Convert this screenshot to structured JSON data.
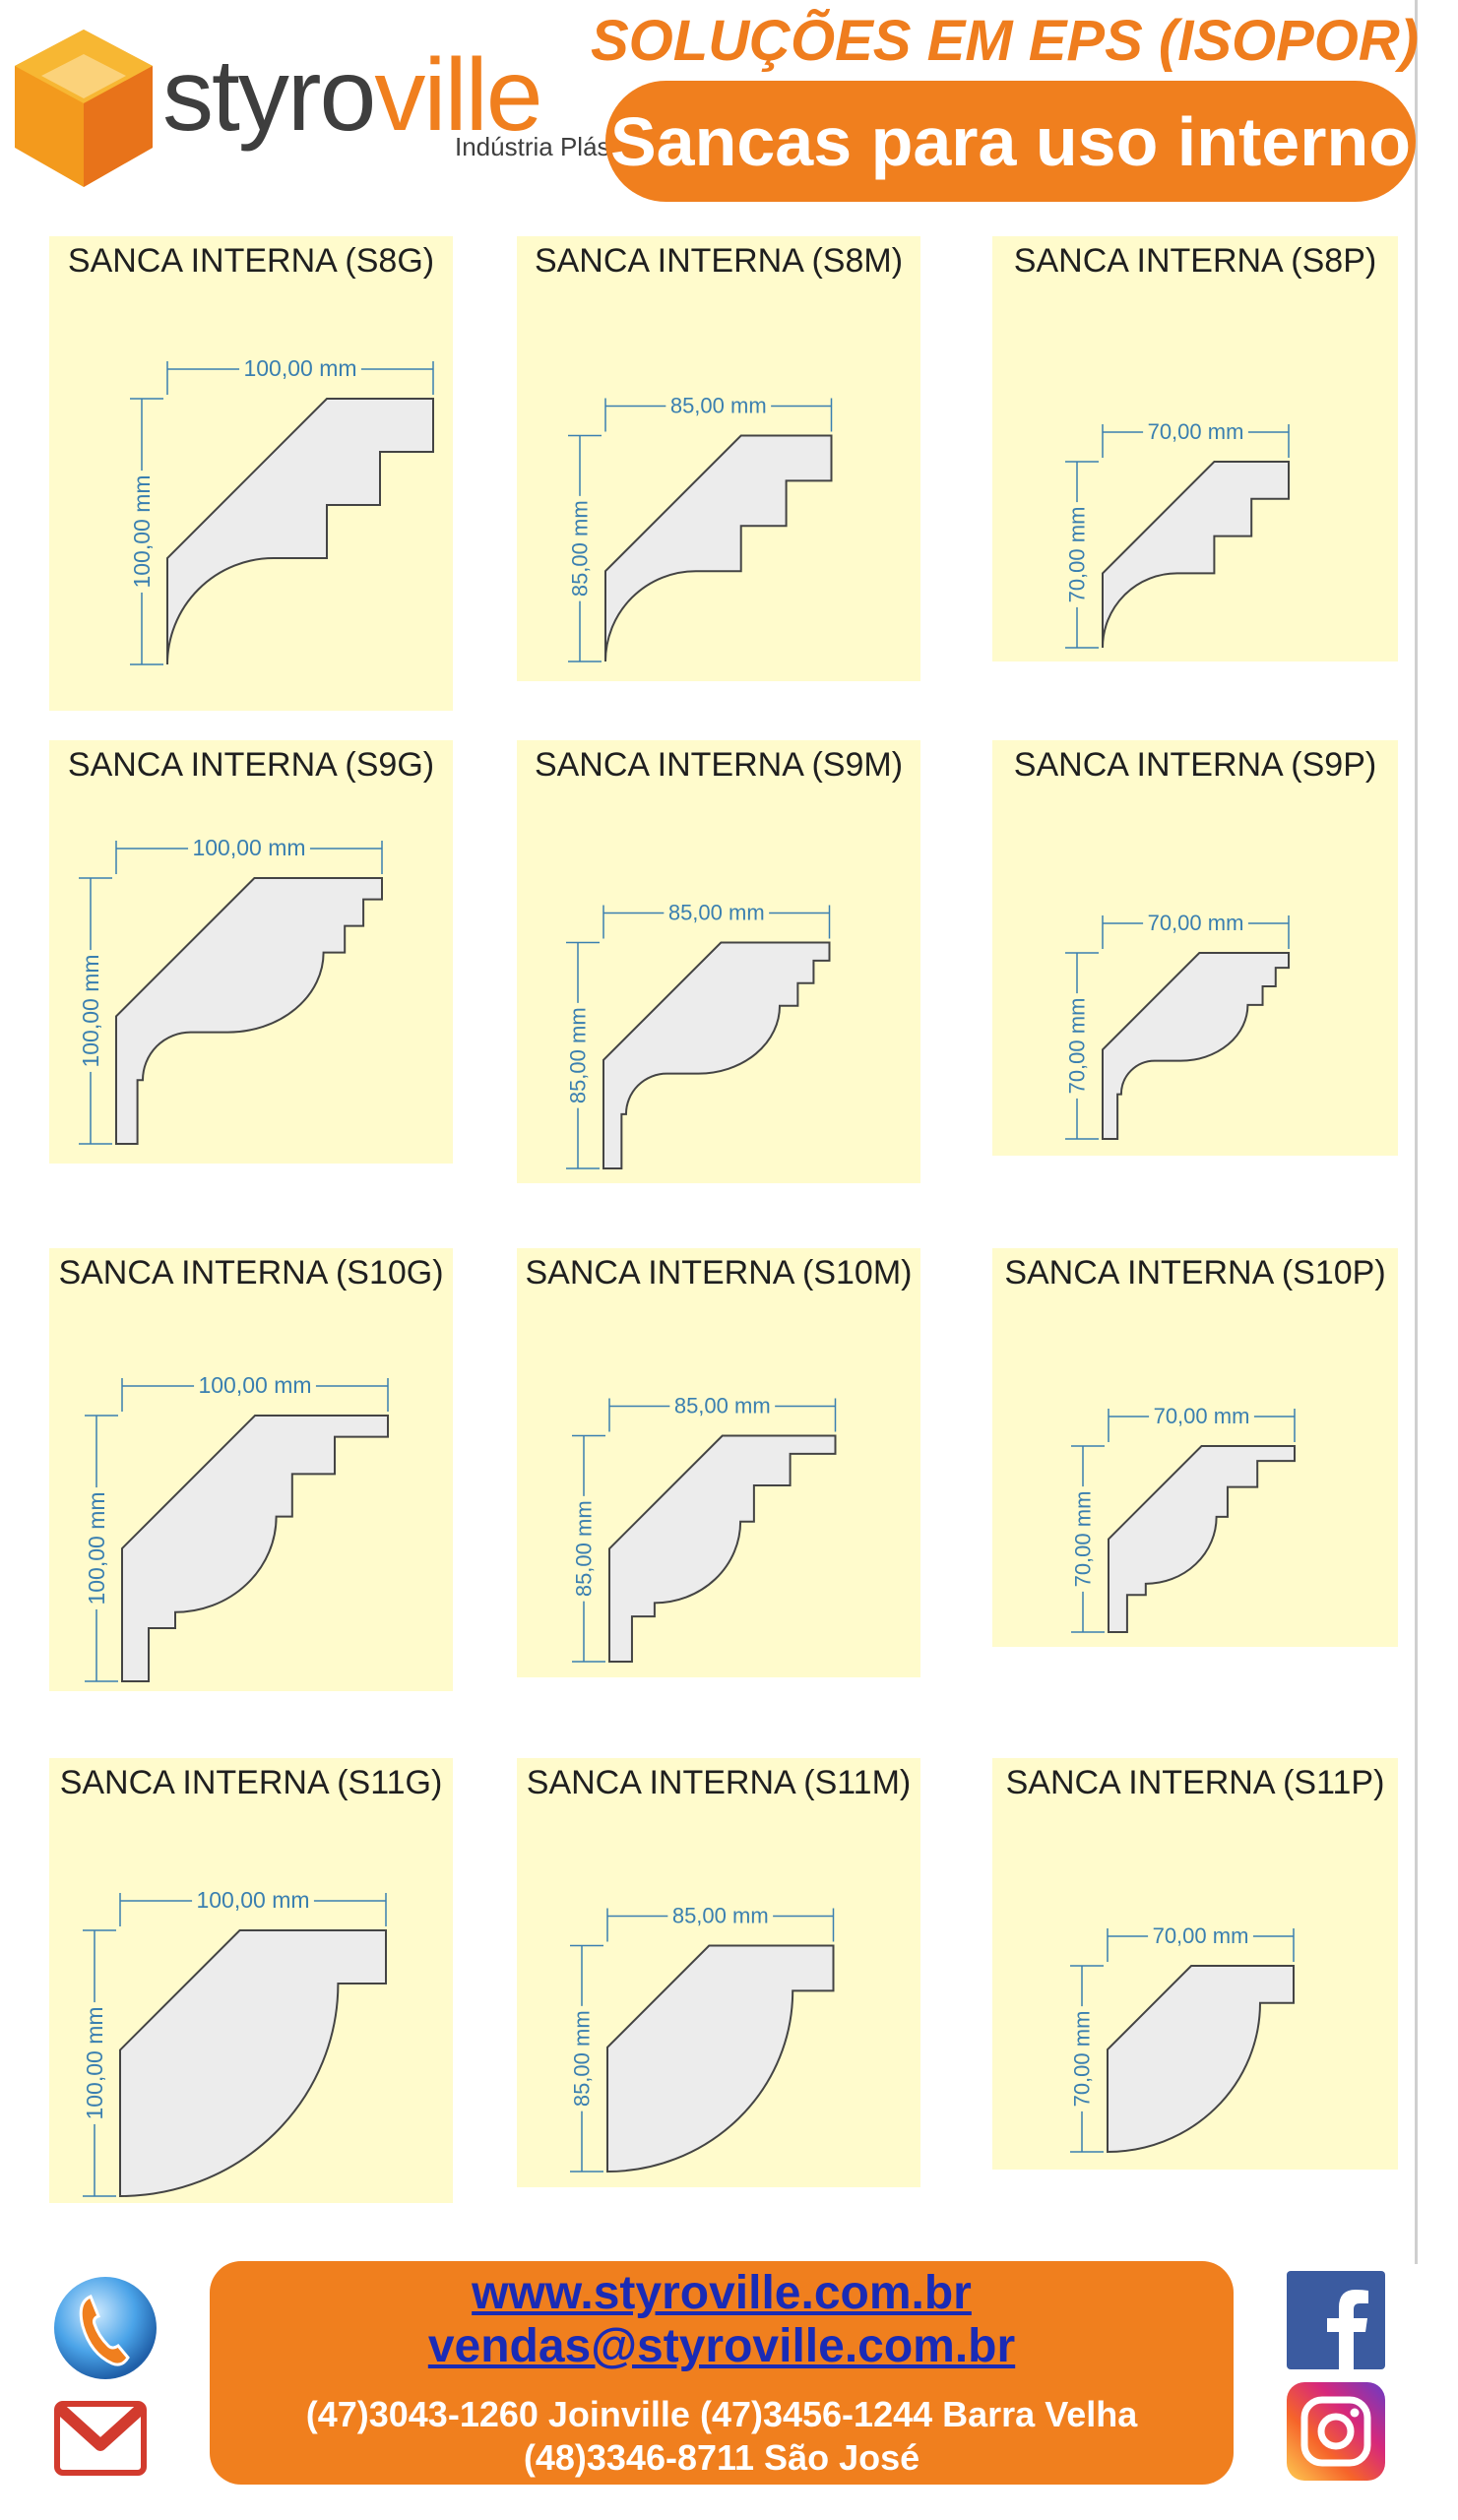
{
  "header": {
    "brand_part1": "styro",
    "brand_part2": "ville",
    "brand_sub": "Indústria Plástica",
    "top_title": "SOLUÇÕES EM EPS (ISOPOR)",
    "pill_title": "Sancas para uso interno"
  },
  "colors": {
    "accent_orange": "#f07f1e",
    "card_bg": "#fffbcc",
    "dimension_blue": "#3a7fb0",
    "link_blue": "#1a2bb5"
  },
  "products": [
    {
      "title": "SANCA INTERNA (S8G)",
      "width": "100,00 mm",
      "height": "100,00 mm",
      "size": 100,
      "style": "S8"
    },
    {
      "title": "SANCA INTERNA (S8M)",
      "width": "85,00 mm",
      "height": "85,00 mm",
      "size": 85,
      "style": "S8"
    },
    {
      "title": "SANCA INTERNA (S8P)",
      "width": "70,00 mm",
      "height": "70,00 mm",
      "size": 70,
      "style": "S8"
    },
    {
      "title": "SANCA INTERNA (S9G)",
      "width": "100,00 mm",
      "height": "100,00 mm",
      "size": 100,
      "style": "S9"
    },
    {
      "title": "SANCA INTERNA (S9M)",
      "width": "85,00 mm",
      "height": "85,00 mm",
      "size": 85,
      "style": "S9"
    },
    {
      "title": "SANCA INTERNA (S9P)",
      "width": "70,00 mm",
      "height": "70,00 mm",
      "size": 70,
      "style": "S9"
    },
    {
      "title": "SANCA INTERNA (S10G)",
      "width": "100,00 mm",
      "height": "100,00 mm",
      "size": 100,
      "style": "S10"
    },
    {
      "title": "SANCA INTERNA (S10M)",
      "width": "85,00 mm",
      "height": "85,00 mm",
      "size": 85,
      "style": "S10"
    },
    {
      "title": "SANCA INTERNA (S10P)",
      "width": "70,00 mm",
      "height": "70,00 mm",
      "size": 70,
      "style": "S10"
    },
    {
      "title": "SANCA INTERNA (S11G)",
      "width": "100,00 mm",
      "height": "100,00 mm",
      "size": 100,
      "style": "S11"
    },
    {
      "title": "SANCA INTERNA (S11M)",
      "width": "85,00 mm",
      "height": "85,00 mm",
      "size": 85,
      "style": "S11"
    },
    {
      "title": "SANCA INTERNA (S11P)",
      "width": "70,00 mm",
      "height": "70,00 mm",
      "size": 70,
      "style": "S11"
    }
  ],
  "footer": {
    "website": "www.styroville.com.br",
    "email": "vendas@styroville.com.br",
    "phones_line1": "(47)3043-1260 Joinville (47)3456-1244 Barra Velha",
    "phones_line2": "(48)3346-8711 São José",
    "icons": [
      "phone-icon",
      "gmail-icon",
      "facebook-icon",
      "instagram-icon"
    ]
  }
}
